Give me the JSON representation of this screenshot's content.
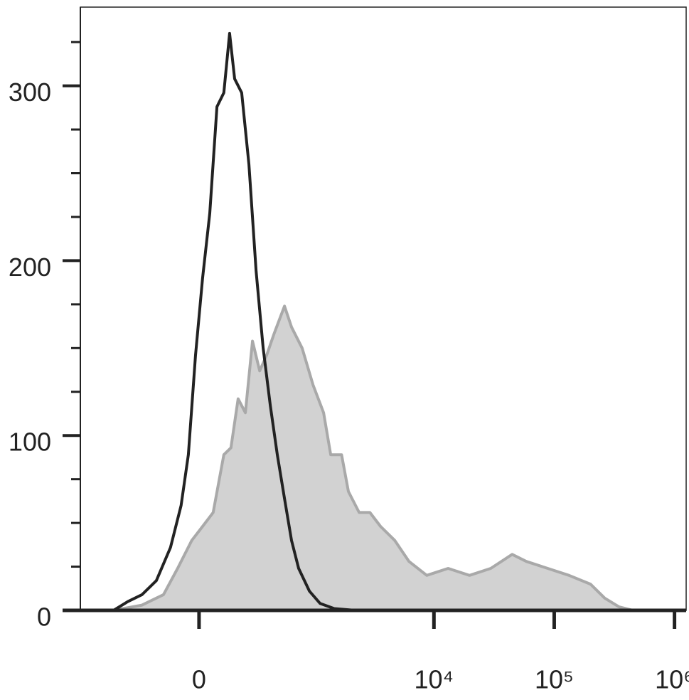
{
  "chart_data": {
    "type": "histogram-overlay",
    "x_scale": "asinh",
    "x_linear_width": 223,
    "xlim": [
      -1070,
      1250000
    ],
    "xticks": [
      0,
      {
        "value": 10000,
        "label": "10⁴"
      },
      {
        "value": 100000,
        "label": "10⁵"
      },
      {
        "value": 1000000,
        "label": "10⁶"
      }
    ],
    "ylim": [
      0,
      345
    ],
    "yticks": [
      0,
      100,
      200,
      300
    ],
    "yminor_ticks": [
      25,
      50,
      75,
      125,
      150,
      175,
      225,
      250,
      275,
      325
    ],
    "series": [
      {
        "style": "filled",
        "color": "#a9a9a9",
        "fill": "#d2d2d2",
        "x": [
          -551,
          -295,
          -164,
          -94,
          -31,
          15,
          61,
          110,
          145,
          183,
          225,
          270,
          321,
          377,
          441,
          551,
          636,
          787,
          975,
          1200,
          1378,
          1699,
          1940,
          2385,
          2932,
          3594,
          4725,
          6203,
          8720,
          13110,
          19760,
          29670,
          44740,
          58660,
          88320,
          132900,
          200200,
          263100,
          345700,
          453600
        ],
        "values": [
          0,
          3,
          9,
          24,
          40,
          48,
          56,
          89,
          93,
          121,
          113,
          154,
          137,
          146,
          158,
          174,
          162,
          150,
          129,
          113,
          89,
          89,
          68,
          56,
          56,
          48,
          40,
          28,
          20,
          24,
          20,
          24,
          32,
          28,
          24,
          20,
          15,
          7,
          2,
          0
        ]
      },
      {
        "style": "line",
        "color": "#222222",
        "x": [
          -551,
          -408,
          -295,
          -203,
          -128,
          -78,
          -46,
          -15,
          15,
          46,
          78,
          110,
          138,
          164,
          203,
          247,
          295,
          348,
          408,
          474,
          551,
          636,
          734,
          910,
          1119,
          1476,
          2228
        ],
        "values": [
          0,
          5,
          9,
          17,
          36,
          60,
          89,
          146,
          190,
          227,
          288,
          296,
          330,
          304,
          296,
          255,
          194,
          150,
          117,
          89,
          64,
          40,
          24,
          11,
          4,
          1,
          0
        ]
      }
    ]
  }
}
